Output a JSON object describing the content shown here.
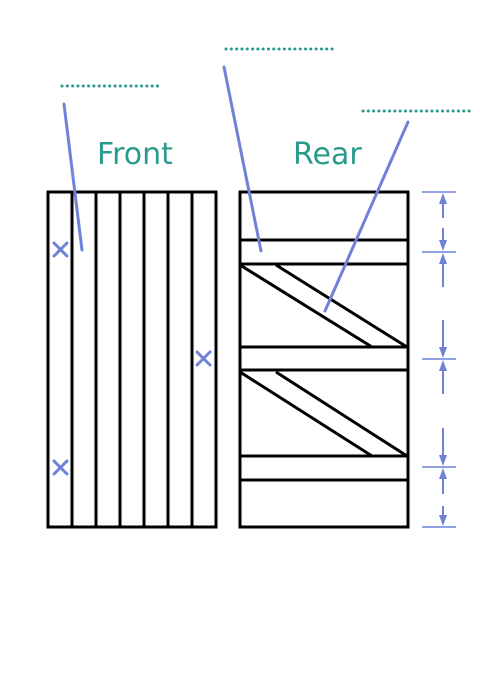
{
  "front_title": "Front",
  "rear_title": "Rear",
  "colors": {
    "teal": "#2a9a8c",
    "blue": "#6f82d8",
    "line": "#000000"
  },
  "icons": {
    "nail_mark": "x-mark-icon",
    "dimension_arrow": "double-headed-arrow-icon"
  }
}
